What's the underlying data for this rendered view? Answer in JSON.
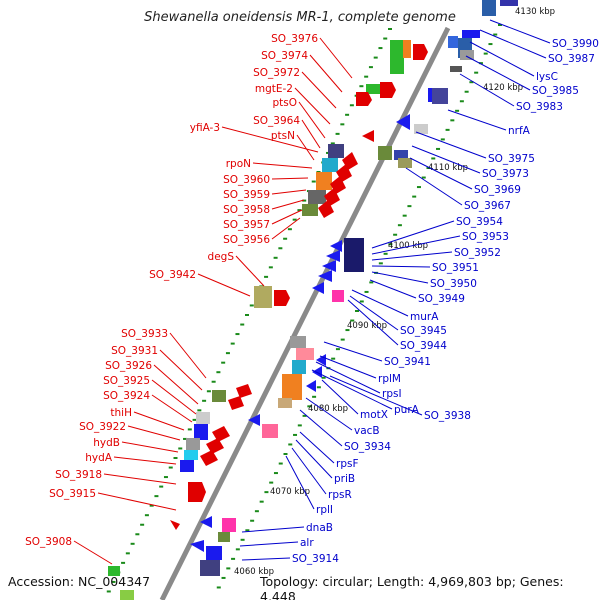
{
  "title": "Shewanella oneidensis MR-1, complete genome",
  "accession": "Accession: NC_004347",
  "topology": "Topology: circular; Length: 4,969,803 bp; Genes: 4,448",
  "scale_labels": [
    "4130 kbp",
    "4120 kbp",
    "4110 kbp",
    "4100 kbp",
    "4090 kbp",
    "4080 kbp",
    "4070 kbp",
    "4060 kbp"
  ],
  "left_genes": [
    "SO_3976",
    "SO_3974",
    "SO_3972",
    "mgtE-2",
    "ptsO",
    "SO_3964",
    "yfiA-3",
    "ptsN",
    "rpoN",
    "SO_3960",
    "SO_3959",
    "SO_3958",
    "SO_3957",
    "SO_3956",
    "degS",
    "SO_3942",
    "SO_3933",
    "SO_3931",
    "SO_3926",
    "SO_3925",
    "SO_3924",
    "thiH",
    "SO_3922",
    "hydB",
    "hydA",
    "SO_3918",
    "SO_3915",
    "SO_3908"
  ],
  "right_genes": [
    "SO_3990",
    "SO_3987",
    "lysC",
    "SO_3985",
    "SO_3983",
    "nrfA",
    "SO_3975",
    "SO_3973",
    "SO_3969",
    "SO_3967",
    "SO_3954",
    "SO_3953",
    "SO_3952",
    "SO_3951",
    "SO_3950",
    "SO_3949",
    "murA",
    "SO_3945",
    "SO_3944",
    "SO_3941",
    "rplM",
    "rpsI",
    "purA",
    "SO_3938",
    "motX",
    "vacB",
    "SO_3934",
    "rpsF",
    "priB",
    "rpsR",
    "rplI",
    "dnaB",
    "alr",
    "SO_3914"
  ],
  "colors": {
    "left_label": "#e00000",
    "right_label": "#0000cc",
    "axis": "#8a8a8a",
    "tick": "#1a8a1a"
  }
}
